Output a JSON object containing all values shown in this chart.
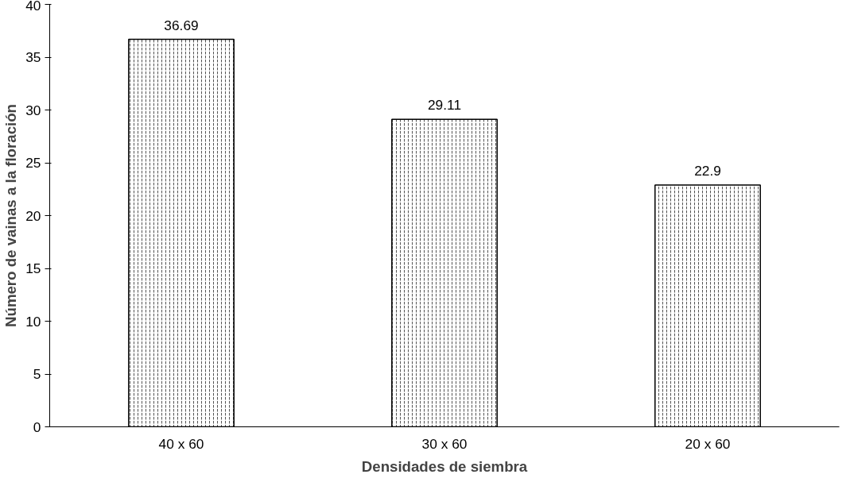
{
  "chart_data": {
    "type": "bar",
    "xlabel": "Densidades de siembra",
    "ylabel": "Número de vainas a la floración",
    "categories": [
      "40 x 60",
      "30 x 60",
      "20 x 60"
    ],
    "values": [
      36.69,
      29.11,
      22.9
    ],
    "color": "#ffffff",
    "ylim": [
      0,
      40
    ],
    "yticks": [
      0,
      5,
      10,
      15,
      20,
      25,
      30,
      35,
      40
    ],
    "data_labels": true,
    "grid": false
  }
}
